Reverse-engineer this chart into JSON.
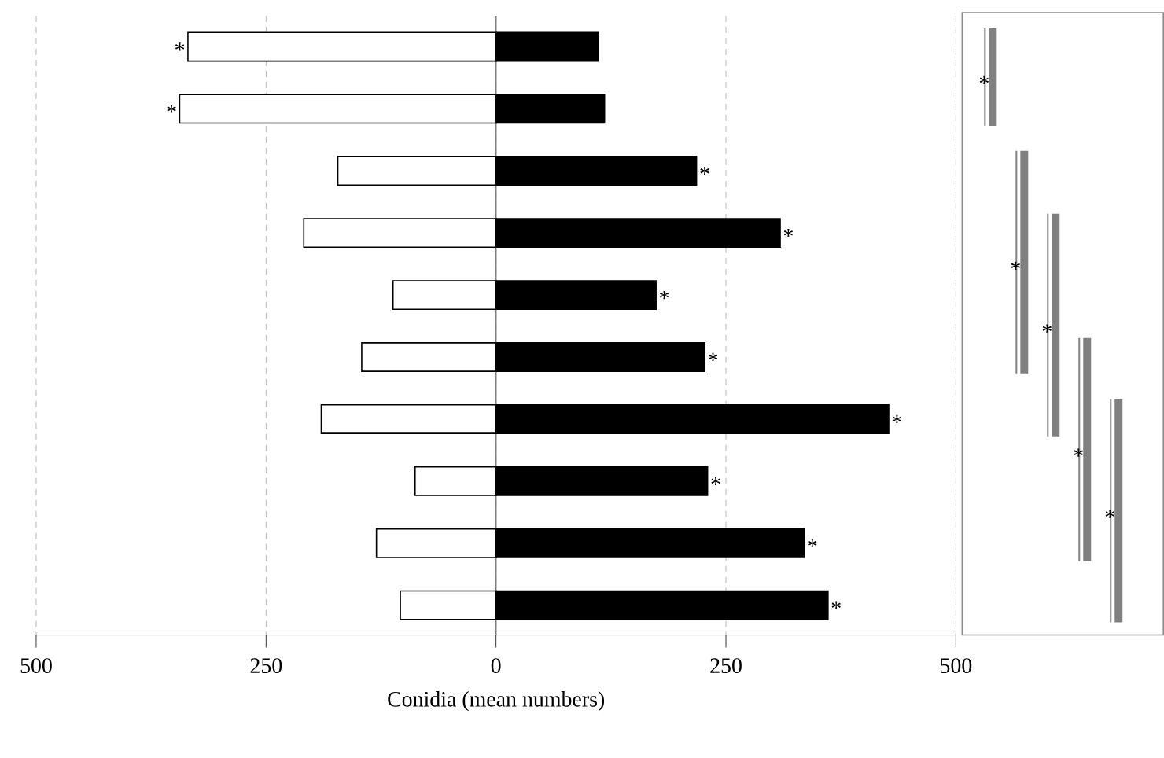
{
  "chart_data": {
    "type": "bar",
    "orientation": "horizontal",
    "stacked": true,
    "categories": [
      null,
      null,
      null,
      null,
      null,
      null,
      null,
      null,
      null,
      null
    ],
    "series": [
      {
        "color": "#ffffff",
        "values": [
          -335,
          -344,
          -172,
          -209,
          -112,
          -146,
          -190,
          -88,
          -130,
          -104
        ]
      },
      {
        "color": "#000000",
        "values": [
          111,
          118,
          218,
          309,
          174,
          227,
          427,
          230,
          335,
          361
        ]
      }
    ],
    "xlim": [
      -500,
      500
    ],
    "xticks": [
      {
        "value": -500,
        "label": "500"
      },
      {
        "value": -250,
        "label": "250"
      },
      0,
      250,
      500
    ],
    "xlabel": "Conidia (mean numbers)",
    "grid": "x",
    "ref_lines": [
      {
        "axis": "x",
        "value": 0,
        "color": "#808080"
      }
    ],
    "annotations": [
      {
        "text": "*",
        "x": -335
      },
      {
        "text": "*",
        "x": -344
      },
      {
        "text": "*",
        "x": 218
      },
      {
        "text": "*",
        "x": 309
      },
      {
        "text": "*",
        "x": 174
      },
      {
        "text": "*",
        "x": 227
      },
      {
        "text": "*",
        "x": 427
      },
      {
        "text": "*",
        "x": 230
      },
      {
        "text": "*",
        "x": 335
      },
      {
        "text": "*",
        "x": 361
      },
      "*",
      "*",
      "*",
      "*",
      "*"
    ]
  }
}
